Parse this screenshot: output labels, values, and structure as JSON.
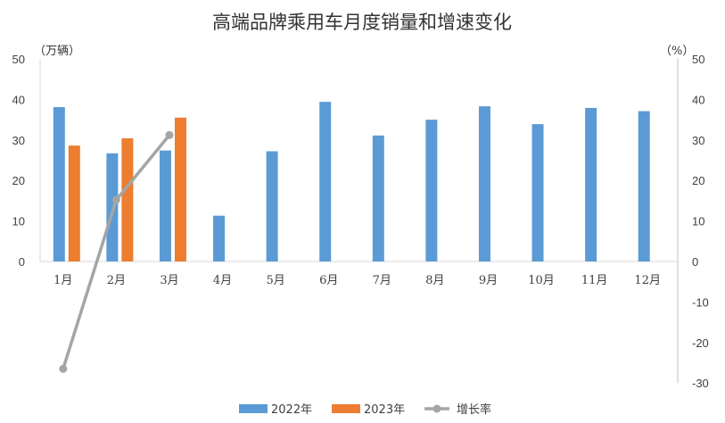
{
  "chart_data": {
    "type": "bar",
    "title": "高端品牌乘用车月度销量和增速变化",
    "left_unit": "（万辆）",
    "right_unit": "（%）",
    "categories": [
      "1月",
      "2月",
      "3月",
      "4月",
      "5月",
      "6月",
      "7月",
      "8月",
      "9月",
      "10月",
      "11月",
      "12月"
    ],
    "series": [
      {
        "name": "2022年",
        "type": "bar",
        "axis": "left",
        "color": "#5B9BD5",
        "values": [
          38.1,
          26.7,
          27.4,
          11.3,
          27.2,
          39.4,
          31.1,
          35.0,
          38.3,
          33.9,
          37.9,
          37.1
        ]
      },
      {
        "name": "2023年",
        "type": "bar",
        "axis": "left",
        "color": "#ED7D31",
        "values": [
          28.6,
          30.4,
          35.5,
          null,
          null,
          null,
          null,
          null,
          null,
          null,
          null,
          null
        ]
      },
      {
        "name": "增长率",
        "type": "line",
        "axis": "right",
        "color": "#A5A5A5",
        "values": [
          -26.5,
          15.2,
          31.2,
          null,
          null,
          null,
          null,
          null,
          null,
          null,
          null,
          null
        ]
      }
    ],
    "left_axis": {
      "ylim": [
        0,
        50
      ],
      "ticks": [
        0,
        10,
        20,
        30,
        40,
        50
      ]
    },
    "right_axis": {
      "ylim": [
        -30,
        50
      ],
      "ticks": [
        -30,
        -20,
        -10,
        0,
        10,
        20,
        30,
        40,
        50
      ],
      "negative_color": "#FF0000"
    },
    "grid": false,
    "legend_position": "bottom"
  }
}
